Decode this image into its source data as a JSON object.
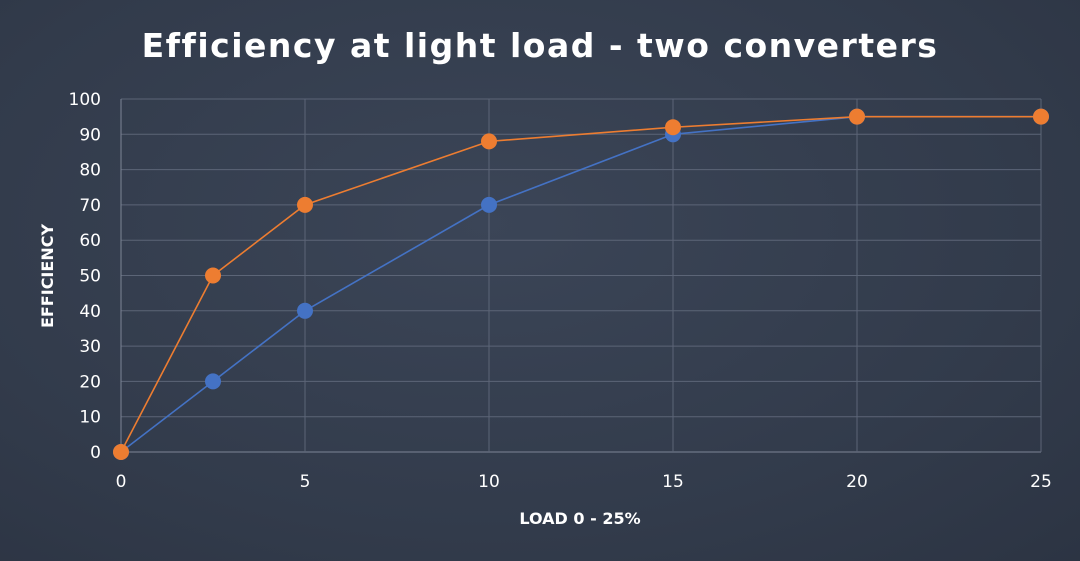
{
  "chart_data": {
    "type": "line",
    "title": "Efficiency at light load - two converters",
    "xlabel": "LOAD 0 - 25%",
    "ylabel": "EFFICIENCY",
    "xlim": [
      0,
      25
    ],
    "ylim": [
      0,
      100
    ],
    "x_ticks": [
      "0",
      "5",
      "10",
      "15",
      "20",
      "25"
    ],
    "y_ticks": [
      "0",
      "10",
      "20",
      "30",
      "40",
      "50",
      "60",
      "70",
      "80",
      "90",
      "100"
    ],
    "grid": true,
    "legend": "none",
    "series": [
      {
        "color": "#4472c4",
        "x": [
          0,
          2.5,
          5,
          10,
          15,
          20,
          25
        ],
        "y": [
          0,
          20,
          40,
          70,
          90,
          95,
          95
        ]
      },
      {
        "color": "#ed7d31",
        "x": [
          0,
          2.5,
          5,
          10,
          15,
          20,
          25
        ],
        "y": [
          0,
          50,
          70,
          88,
          92,
          95,
          95
        ]
      }
    ]
  }
}
